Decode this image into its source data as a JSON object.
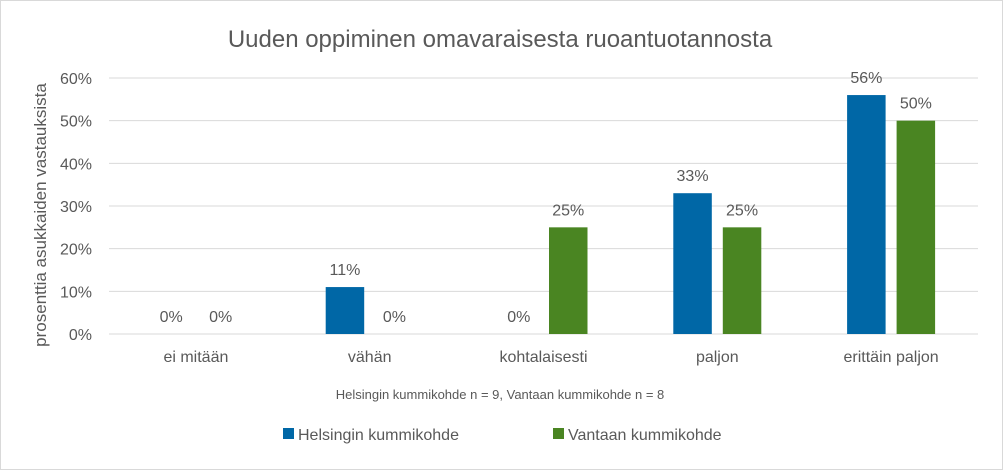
{
  "chart_data": {
    "type": "bar",
    "title": "Uuden oppiminen omavaraisesta ruoantuotannosta",
    "xlabel": "Helsingin kummikohde n = 9, Vantaan kummikohde n = 8",
    "ylabel": "prosenttia asukkaiden vastauksista",
    "ylim": [
      0,
      60
    ],
    "yticks": [
      "0%",
      "10%",
      "20%",
      "30%",
      "40%",
      "50%",
      "60%"
    ],
    "grid": true,
    "legend_position": "bottom",
    "categories": [
      "ei mitään",
      "vähän",
      "kohtalaisesti",
      "paljon",
      "erittäin paljon"
    ],
    "series": [
      {
        "name": "Helsingin kummikohde",
        "color": "#0067A6",
        "values": [
          0,
          11,
          0,
          33,
          56
        ]
      },
      {
        "name": "Vantaan kummikohde",
        "color": "#4A8522",
        "values": [
          0,
          0,
          25,
          25,
          50
        ]
      }
    ]
  }
}
